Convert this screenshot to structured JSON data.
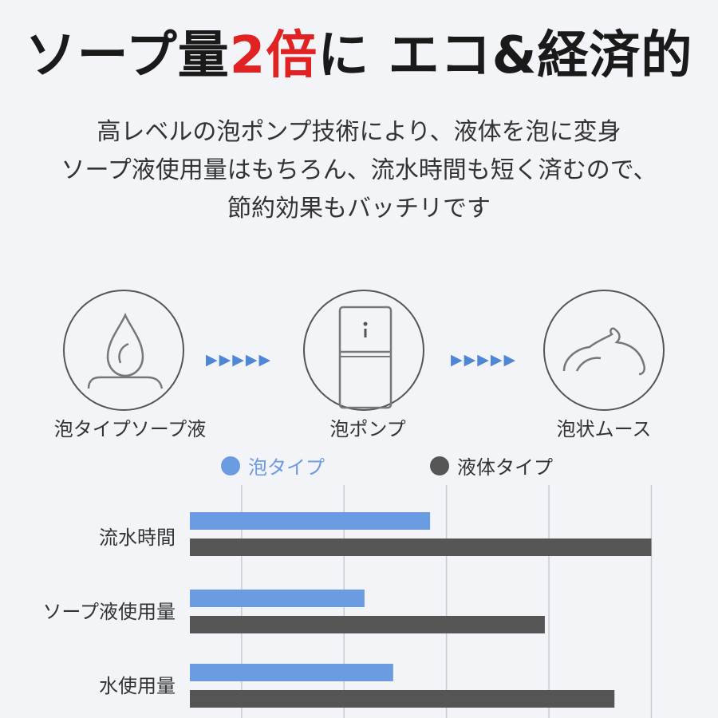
{
  "headline": {
    "part1": "ソープ量",
    "accent": "2倍",
    "part2": "に エコ&経済的"
  },
  "description": [
    "高レベルの泡ポンプ技術により、液体を泡に変身",
    "ソープ液使用量はもちろん、流水時間も短く済むので、",
    "節約効果もバッチリです"
  ],
  "steps": [
    {
      "label": "泡タイプソープ液",
      "icon": "soap-drop-icon"
    },
    {
      "label": "泡ポンプ",
      "icon": "foam-pump-icon"
    },
    {
      "label": "泡状ムース",
      "icon": "foam-mousse-icon"
    }
  ],
  "arrow_glyph": "▶▶▶▶▶",
  "colors": {
    "foam": "#6b9be0",
    "liquid": "#555555",
    "accent": "#e02222",
    "grid": "#c8ccd2"
  },
  "chart_data": {
    "type": "bar",
    "orientation": "horizontal",
    "categories": [
      "流水時間",
      "ソープ液使用量",
      "水使用量"
    ],
    "series": [
      {
        "name": "泡タイプ",
        "values": [
          46,
          30,
          37
        ]
      },
      {
        "name": "液体タイプ",
        "values": [
          100,
          74,
          91
        ]
      }
    ],
    "xlim": [
      -6,
      104
    ],
    "grid": true,
    "legend": "top"
  }
}
